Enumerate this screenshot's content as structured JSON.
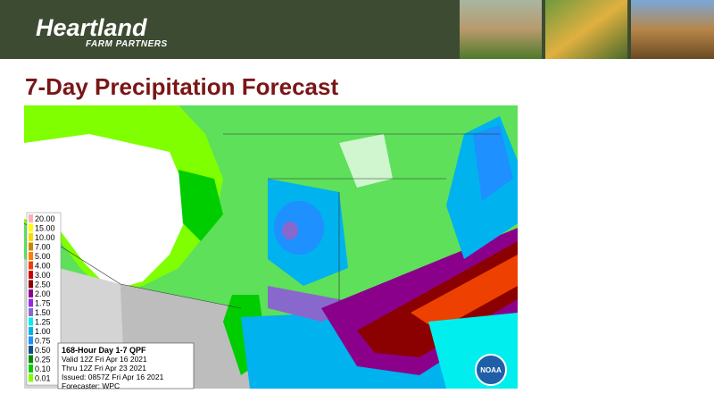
{
  "header": {
    "brand": "Heartland",
    "tagline": "FARM PARTNERS"
  },
  "title": "7-Day Precipitation Forecast",
  "map": {
    "legend": [
      {
        "label": "20.00",
        "color": "#ffaeb9"
      },
      {
        "label": "15.00",
        "color": "#ffff00"
      },
      {
        "label": "10.00",
        "color": "#ffd700"
      },
      {
        "label": "7.00",
        "color": "#cd8500"
      },
      {
        "label": "5.00",
        "color": "#ff7f00"
      },
      {
        "label": "4.00",
        "color": "#ee4000"
      },
      {
        "label": "3.00",
        "color": "#cd0000"
      },
      {
        "label": "2.50",
        "color": "#8b0000"
      },
      {
        "label": "2.00",
        "color": "#8b008b"
      },
      {
        "label": "1.75",
        "color": "#912cee"
      },
      {
        "label": "1.50",
        "color": "#8968cd"
      },
      {
        "label": "1.25",
        "color": "#00eeee"
      },
      {
        "label": "1.00",
        "color": "#00b2ee"
      },
      {
        "label": "0.75",
        "color": "#1e90ff"
      },
      {
        "label": "0.50",
        "color": "#104e8b"
      },
      {
        "label": "0.25",
        "color": "#008b00"
      },
      {
        "label": "0.10",
        "color": "#00cd00"
      },
      {
        "label": "0.01",
        "color": "#7fff00"
      }
    ],
    "info": [
      "168-Hour Day 1-7 QPF",
      "Valid 12Z Fri Apr 16 2021",
      "Thru 12Z Fri Apr 23 2021",
      "Issued: 0857Z Fri Apr 16 2021",
      "Forecaster: WPC"
    ],
    "logo": "NOAA"
  }
}
